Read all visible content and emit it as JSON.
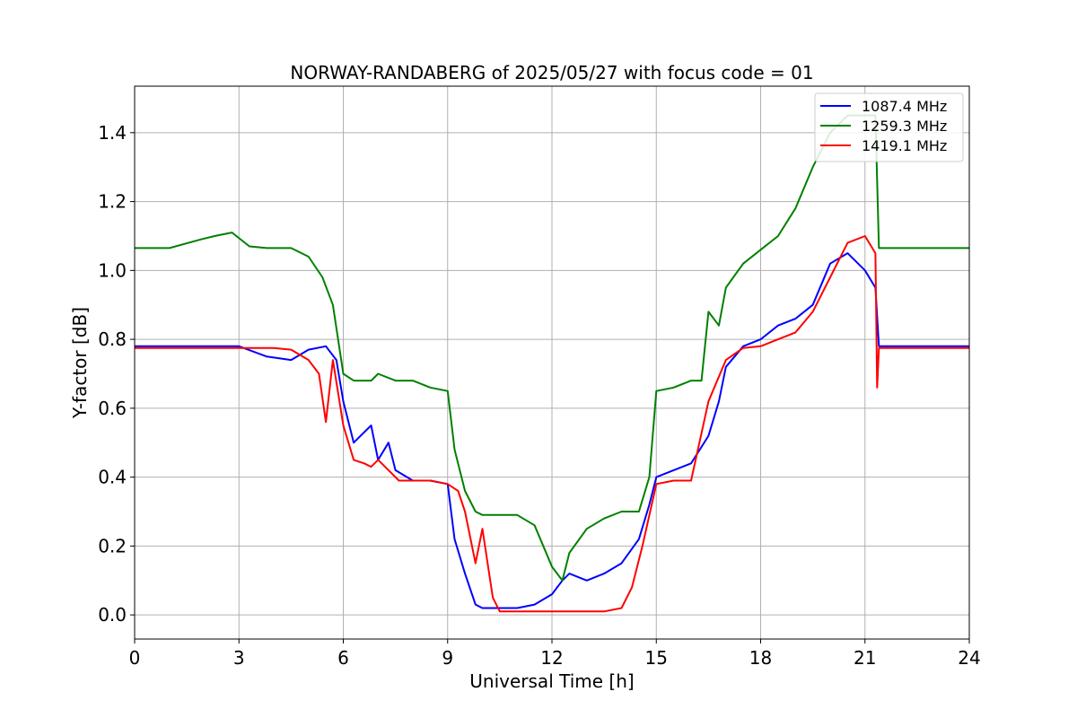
{
  "chart_data": {
    "type": "line",
    "title": "NORWAY-RANDABERG of 2025/05/27 with focus code = 01",
    "xlabel": "Universal Time [h]",
    "ylabel": "Y-factor [dB]",
    "xlim": [
      0,
      24
    ],
    "ylim": [
      -0.07,
      1.535
    ],
    "xticks": [
      0,
      3,
      6,
      9,
      12,
      15,
      18,
      21,
      24
    ],
    "yticks": [
      0.0,
      0.2,
      0.4,
      0.6,
      0.8,
      1.0,
      1.2,
      1.4
    ],
    "xtick_labels": [
      "0",
      "3",
      "6",
      "9",
      "12",
      "15",
      "18",
      "21",
      "24"
    ],
    "ytick_labels": [
      "0.0",
      "0.2",
      "0.4",
      "0.6",
      "0.8",
      "1.0",
      "1.2",
      "1.4"
    ],
    "grid": true,
    "legend_position": "top-right",
    "series": [
      {
        "name": "1087.4 MHz",
        "color": "#0000ff",
        "x": [
          0,
          1,
          2,
          3,
          3.8,
          4.5,
          5.0,
          5.5,
          5.8,
          6.0,
          6.3,
          6.8,
          7.0,
          7.3,
          7.5,
          8.0,
          8.5,
          9.0,
          9.2,
          9.5,
          9.8,
          10.0,
          10.3,
          10.5,
          11.0,
          11.5,
          12.0,
          12.3,
          12.5,
          13.0,
          13.5,
          14.0,
          14.5,
          14.8,
          15.0,
          15.5,
          16.0,
          16.5,
          16.8,
          17.0,
          17.5,
          18.0,
          18.5,
          19.0,
          19.5,
          20.0,
          20.5,
          21.0,
          21.3,
          21.4,
          22,
          23,
          24
        ],
        "y": [
          0.78,
          0.78,
          0.78,
          0.78,
          0.75,
          0.74,
          0.77,
          0.78,
          0.74,
          0.62,
          0.5,
          0.55,
          0.45,
          0.5,
          0.42,
          0.39,
          0.39,
          0.38,
          0.22,
          0.12,
          0.03,
          0.02,
          0.02,
          0.02,
          0.02,
          0.03,
          0.06,
          0.1,
          0.12,
          0.1,
          0.12,
          0.15,
          0.22,
          0.32,
          0.4,
          0.42,
          0.44,
          0.52,
          0.62,
          0.72,
          0.78,
          0.8,
          0.84,
          0.86,
          0.9,
          1.02,
          1.05,
          1.0,
          0.95,
          0.78,
          0.78,
          0.78,
          0.78
        ]
      },
      {
        "name": "1259.3 MHz",
        "color": "#008000",
        "x": [
          0,
          1,
          1.9,
          2.3,
          2.8,
          3.3,
          3.8,
          4.5,
          5.0,
          5.4,
          5.7,
          6.0,
          6.3,
          6.8,
          7.0,
          7.5,
          8.0,
          8.5,
          9.0,
          9.2,
          9.5,
          9.8,
          10.0,
          10.5,
          11.0,
          11.5,
          12.0,
          12.3,
          12.5,
          13.0,
          13.5,
          14.0,
          14.5,
          14.8,
          15.0,
          15.5,
          16.0,
          16.3,
          16.5,
          16.8,
          17.0,
          17.5,
          18.0,
          18.5,
          19.0,
          19.5,
          20.0,
          20.5,
          21.0,
          21.3,
          21.4,
          22,
          23,
          24
        ],
        "y": [
          1.065,
          1.065,
          1.09,
          1.1,
          1.11,
          1.07,
          1.065,
          1.065,
          1.04,
          0.98,
          0.9,
          0.7,
          0.68,
          0.68,
          0.7,
          0.68,
          0.68,
          0.66,
          0.65,
          0.48,
          0.36,
          0.3,
          0.29,
          0.29,
          0.29,
          0.26,
          0.14,
          0.1,
          0.18,
          0.25,
          0.28,
          0.3,
          0.3,
          0.4,
          0.65,
          0.66,
          0.68,
          0.68,
          0.88,
          0.84,
          0.95,
          1.02,
          1.06,
          1.1,
          1.18,
          1.3,
          1.4,
          1.45,
          1.45,
          1.45,
          1.065,
          1.065,
          1.065,
          1.065
        ]
      },
      {
        "name": "1419.1 MHz",
        "color": "#ff0000",
        "x": [
          0,
          1,
          2,
          3,
          4.0,
          4.5,
          5.0,
          5.3,
          5.5,
          5.7,
          6.0,
          6.3,
          6.6,
          6.8,
          7.0,
          7.3,
          7.6,
          8.0,
          8.5,
          9.0,
          9.3,
          9.5,
          9.8,
          10.0,
          10.3,
          10.5,
          11.0,
          11.5,
          12.0,
          12.5,
          13.0,
          13.5,
          14.0,
          14.3,
          14.6,
          15.0,
          15.5,
          16.0,
          16.5,
          17.0,
          17.5,
          18.0,
          18.5,
          19.0,
          19.5,
          20.0,
          20.5,
          21.0,
          21.3,
          21.35,
          21.4,
          22,
          23,
          24
        ],
        "y": [
          0.775,
          0.775,
          0.775,
          0.775,
          0.775,
          0.77,
          0.74,
          0.7,
          0.56,
          0.74,
          0.55,
          0.45,
          0.44,
          0.43,
          0.45,
          0.42,
          0.39,
          0.39,
          0.39,
          0.38,
          0.36,
          0.3,
          0.15,
          0.25,
          0.05,
          0.01,
          0.01,
          0.01,
          0.01,
          0.01,
          0.01,
          0.01,
          0.02,
          0.08,
          0.2,
          0.38,
          0.39,
          0.39,
          0.62,
          0.74,
          0.775,
          0.78,
          0.8,
          0.82,
          0.88,
          0.98,
          1.08,
          1.1,
          1.05,
          0.66,
          0.775,
          0.775,
          0.775,
          0.775
        ]
      }
    ]
  }
}
